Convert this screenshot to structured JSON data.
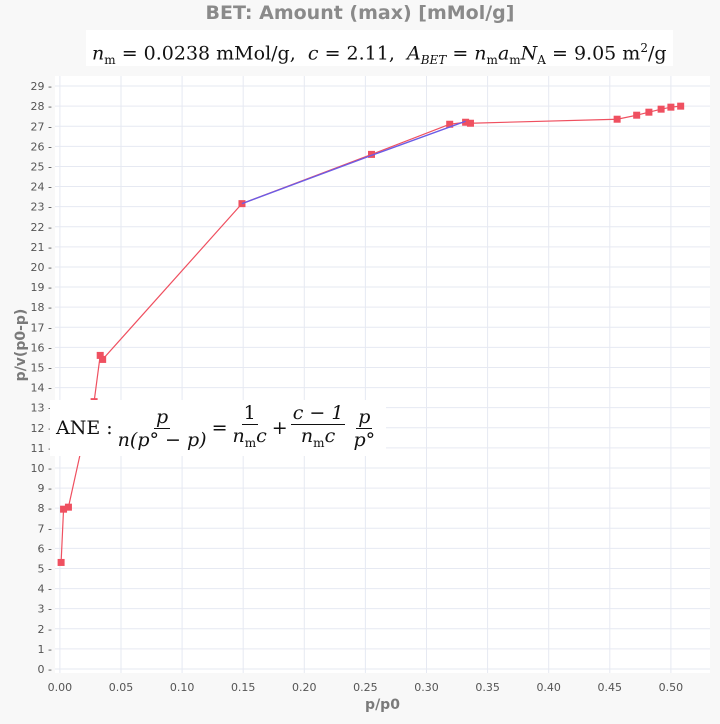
{
  "title": "BET: Amount (max) [mMol/g]",
  "subtitle": {
    "nm_label": "n",
    "nm_sub": "m",
    "nm_value": "= 0.0238 mMol/g,",
    "c_label": "c",
    "c_value": "= 2.11,",
    "a_label": "A",
    "a_sub": "BET",
    "a_eq": "= n",
    "a_eq_sub1": "m",
    "a_eq_mid": "a",
    "a_eq_sub2": "m",
    "a_eq_N": "N",
    "a_eq_sub3": "A",
    "a_value": "= 9.05 m",
    "a_unit_sup": "2",
    "a_unit_end": "/g"
  },
  "equation": {
    "lead": "ANE :",
    "f1_num": "p",
    "f1_den": "n(p° − p)",
    "eq": "=",
    "f2_num": "1",
    "f2_den": "n",
    "f2_den_sub": "m",
    "f2_den_end": "c",
    "plus": "+",
    "f3_num": "c − 1",
    "f3_den": "n",
    "f3_den_sub": "m",
    "f3_den_end": "c",
    "f4_num": "p",
    "f4_den": "p°"
  },
  "chart_data": {
    "type": "scatter",
    "title": "BET: Amount (max) [mMol/g]",
    "xlabel": "p/p0",
    "ylabel": "p/v(p0-p)",
    "xlim": [
      -0.004,
      0.532
    ],
    "ylim": [
      -0.2,
      29.5
    ],
    "xticks": [
      0,
      0.05,
      0.1,
      0.15,
      0.2,
      0.25,
      0.3,
      0.35,
      0.4,
      0.45,
      0.5
    ],
    "xtick_labels": [
      "0.00",
      "0.05",
      "0.10",
      "0.15",
      "0.20",
      "0.25",
      "0.30",
      "0.35",
      "0.40",
      "0.45",
      "0.50"
    ],
    "yticks": [
      0,
      1,
      2,
      3,
      4,
      5,
      6,
      7,
      8,
      9,
      10,
      11,
      12,
      13,
      14,
      15,
      16,
      17,
      18,
      19,
      20,
      21,
      22,
      23,
      24,
      25,
      26,
      27,
      28,
      29
    ],
    "grid": true,
    "series": [
      {
        "color": "#ef5060",
        "marker": "square",
        "x": [
          0.001,
          0.003,
          0.007,
          0.017,
          0.028,
          0.033,
          0.035,
          0.149,
          0.255,
          0.319,
          0.332,
          0.336,
          0.456,
          0.472,
          0.482,
          0.492,
          0.5,
          0.508
        ],
        "y": [
          5.3,
          7.95,
          8.05,
          10.8,
          13.3,
          15.6,
          15.4,
          23.15,
          25.6,
          27.1,
          27.2,
          27.15,
          27.35,
          27.55,
          27.7,
          27.85,
          27.95,
          28.0
        ]
      },
      {
        "color": "#6b5ce6",
        "marker": "none",
        "x": [
          0.149,
          0.255,
          0.332
        ],
        "y": [
          23.15,
          25.55,
          27.25
        ]
      }
    ]
  }
}
